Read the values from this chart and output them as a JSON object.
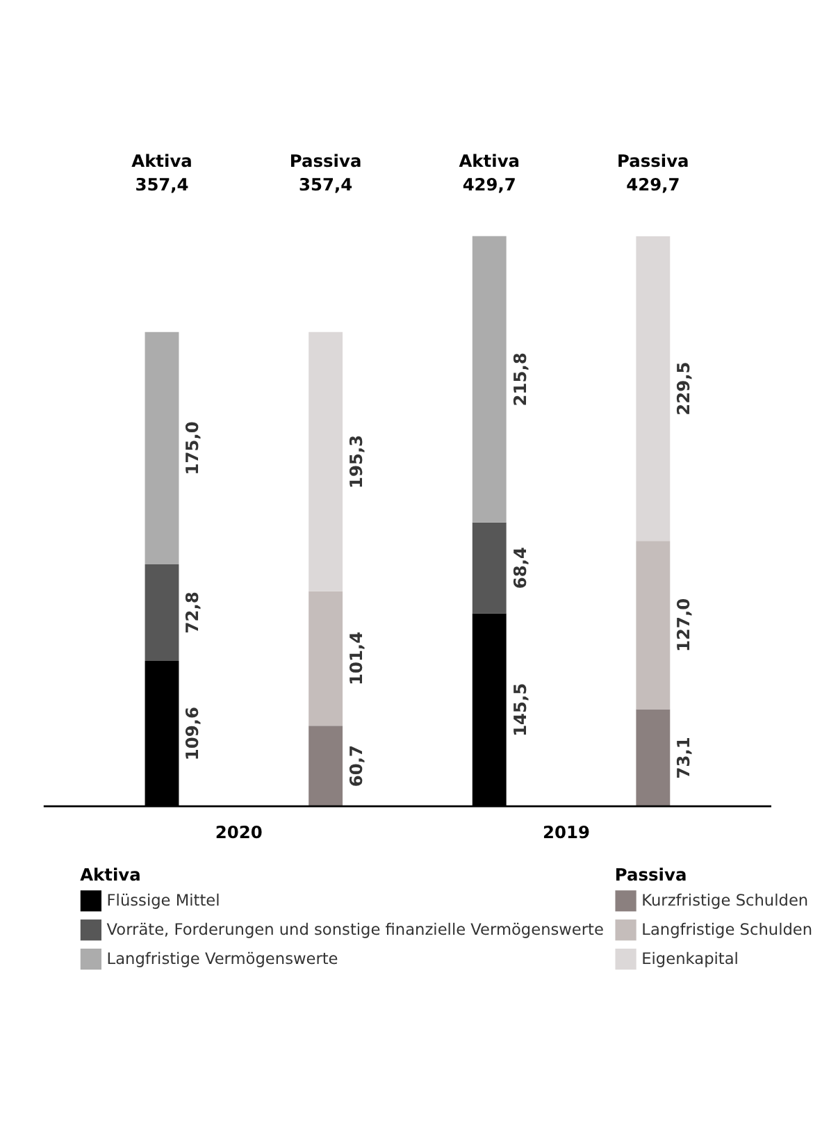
{
  "chart_data": {
    "type": "bar",
    "stacked": true,
    "categories": [
      "Aktiva\n357,4",
      "Passiva\n357,4",
      "Aktiva\n429,7",
      "Passiva\n429,7"
    ],
    "annotations": [
      "2020",
      "2019"
    ],
    "series": [
      {
        "name": "Flüssige Mittel",
        "color": "#000000",
        "values": [
          109.6,
          null,
          145.5,
          null
        ],
        "value_labels": [
          "109,6",
          null,
          "145,5",
          null
        ]
      },
      {
        "name": "Vorräte, Forderungen und sonstige finanzielle Vermögenswerte",
        "color": "#575757",
        "values": [
          72.8,
          null,
          68.4,
          null
        ],
        "value_labels": [
          "72,8",
          null,
          "68,4",
          null
        ]
      },
      {
        "name": "Langfristige Vermögenswerte",
        "color": "#acacac",
        "values": [
          175.0,
          null,
          215.8,
          null
        ],
        "value_labels": [
          "175,0",
          null,
          "215,8",
          null
        ]
      },
      {
        "name": "Kurzfristige Schulden",
        "color": "#8b807f",
        "values": [
          null,
          60.7,
          null,
          73.1
        ],
        "value_labels": [
          null,
          "60,7",
          null,
          "73,1"
        ]
      },
      {
        "name": "Langfristige Schulden",
        "color": "#c5bdbb",
        "values": [
          null,
          101.4,
          null,
          127.0
        ],
        "value_labels": [
          null,
          "101,4",
          null,
          "127,0"
        ]
      },
      {
        "name": "Eigenkapital",
        "color": "#dcd8d8",
        "values": [
          null,
          195.3,
          null,
          229.5
        ],
        "value_labels": [
          null,
          "195,3",
          null,
          "229,5"
        ]
      }
    ],
    "ylim": [
      0,
      429.7
    ],
    "legend": "bottom",
    "legend_title": [
      "Aktiva",
      "Passiva"
    ]
  }
}
